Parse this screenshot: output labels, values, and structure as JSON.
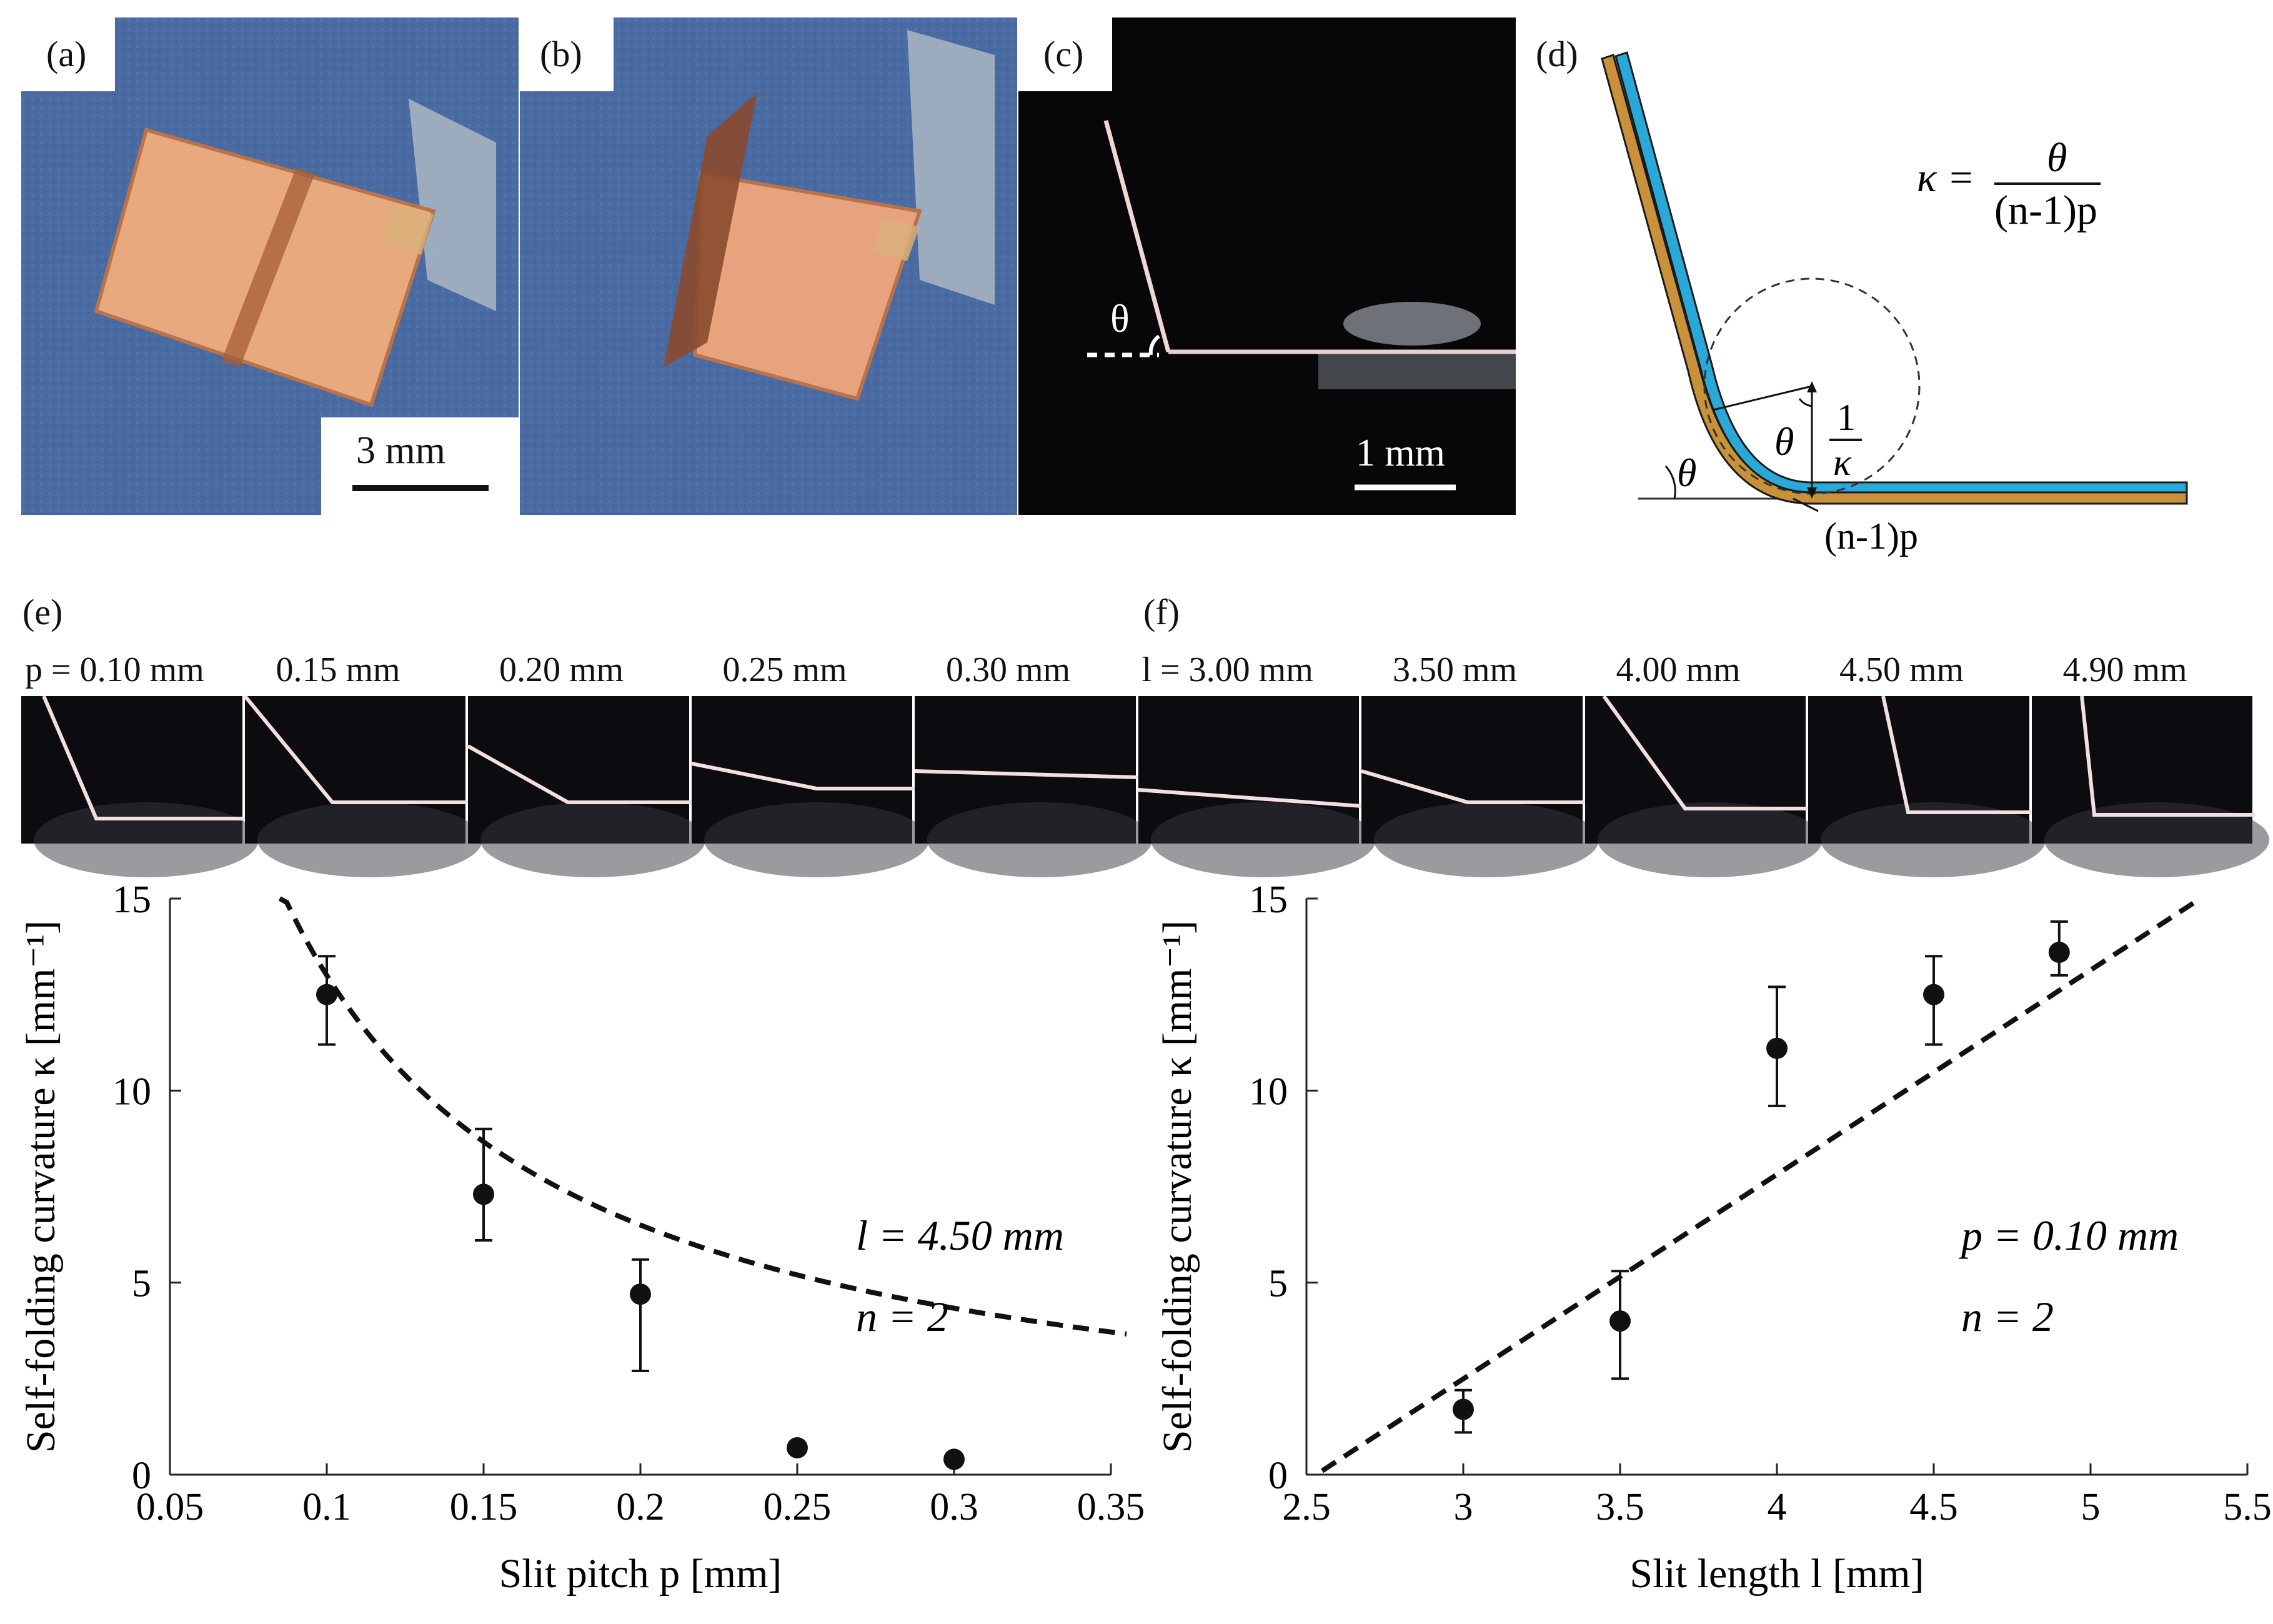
{
  "panels": {
    "a": {
      "label": "(a)",
      "scale": "3 mm"
    },
    "b": {
      "label": "(b)"
    },
    "c": {
      "label": "(c)",
      "scale": "1 mm",
      "angle": "θ"
    },
    "d": {
      "label": "(d)",
      "eq_lhs": "κ =",
      "eq_num": "θ",
      "eq_den": "(n-1)p",
      "theta": "θ",
      "inv_num": "1",
      "inv_den": "κ",
      "arc": "(n-1)p"
    },
    "e": {
      "label": "(e)"
    },
    "f": {
      "label": "(f)"
    }
  },
  "strip_e": [
    "p = 0.10 mm",
    "0.15 mm",
    "0.20 mm",
    "0.25 mm",
    "0.30 mm"
  ],
  "strip_f": [
    "l = 3.00 mm",
    "3.50 mm",
    "4.00 mm",
    "4.50 mm",
    "4.90 mm"
  ],
  "colors": {
    "cyan": "#2aa8d8",
    "gold": "#c8913a",
    "copper": "#e7a77c",
    "blue_bg": "#4d6ea6",
    "dark": "#0b0b10"
  },
  "chart_data": [
    {
      "type": "scatter",
      "xlabel": "Slit pitch p [mm]",
      "ylabel": "Self-folding curvature κ [mm⁻¹]",
      "xlim": [
        0.05,
        0.35
      ],
      "ylim": [
        0,
        15
      ],
      "xticks": [
        "0.05",
        "0.1",
        "0.15",
        "0.2",
        "0.25",
        "0.3",
        "0.35"
      ],
      "yticks": [
        "0",
        "5",
        "10",
        "15"
      ],
      "annotations": [
        "l = 4.50 mm",
        "n = 2"
      ],
      "series": [
        {
          "x": [
            0.1,
            0.15,
            0.2,
            0.25,
            0.3
          ],
          "y": [
            12.5,
            7.3,
            4.7,
            0.7,
            0.4
          ],
          "err_low": [
            11.2,
            6.1,
            2.7,
            0.7,
            0.3
          ],
          "err_high": [
            13.5,
            9.0,
            5.6,
            0.7,
            0.4
          ]
        },
        {
          "type": "line",
          "style": "dashed",
          "model": "θ/((n-1)p)",
          "x_start": 0.085,
          "x_end": 0.355
        }
      ]
    },
    {
      "type": "scatter",
      "xlabel": "Slit length l [mm]",
      "ylabel": "Self-folding curvature κ [mm⁻¹]",
      "xlim": [
        2.5,
        5.5
      ],
      "ylim": [
        0,
        15
      ],
      "xticks": [
        "2.5",
        "3",
        "3.5",
        "4",
        "4.5",
        "5",
        "5.5"
      ],
      "yticks": [
        "0",
        "5",
        "10",
        "15"
      ],
      "annotations": [
        "p = 0.10 mm",
        "n = 2"
      ],
      "series": [
        {
          "x": [
            3.0,
            3.5,
            4.0,
            4.5,
            4.9
          ],
          "y": [
            1.7,
            4.0,
            11.1,
            12.5,
            13.6
          ],
          "err_low": [
            1.1,
            2.5,
            9.6,
            11.2,
            13.0
          ],
          "err_high": [
            2.2,
            5.3,
            12.7,
            13.5,
            14.4
          ]
        },
        {
          "type": "line",
          "style": "dashed",
          "x_start": 2.55,
          "y_start": 0.1,
          "x_end": 5.35,
          "y_end": 15.0
        }
      ]
    }
  ]
}
